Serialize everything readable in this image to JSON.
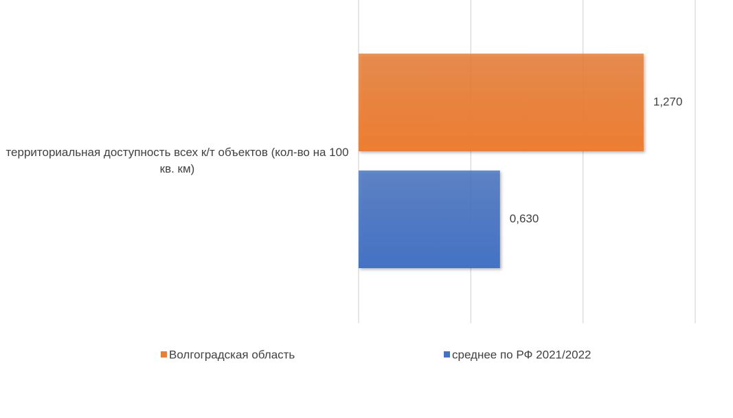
{
  "chart_data": {
    "type": "bar",
    "orientation": "horizontal",
    "categories": [
      "территориальная доступность всех к/т объектов (кол-во на 100 кв. км)"
    ],
    "series": [
      {
        "name": "Волгоградская область",
        "color": "#ed7d31",
        "values": [
          1.27
        ],
        "value_labels": [
          "1,270"
        ]
      },
      {
        "name": "среднее по РФ 2021/2022",
        "color": "#4472c4",
        "values": [
          0.63
        ],
        "value_labels": [
          "0,630"
        ]
      }
    ],
    "xlim": [
      0,
      1.5
    ],
    "xticks": [
      0,
      0.5,
      1,
      1.5
    ],
    "grid": true,
    "legend": "bottom"
  }
}
